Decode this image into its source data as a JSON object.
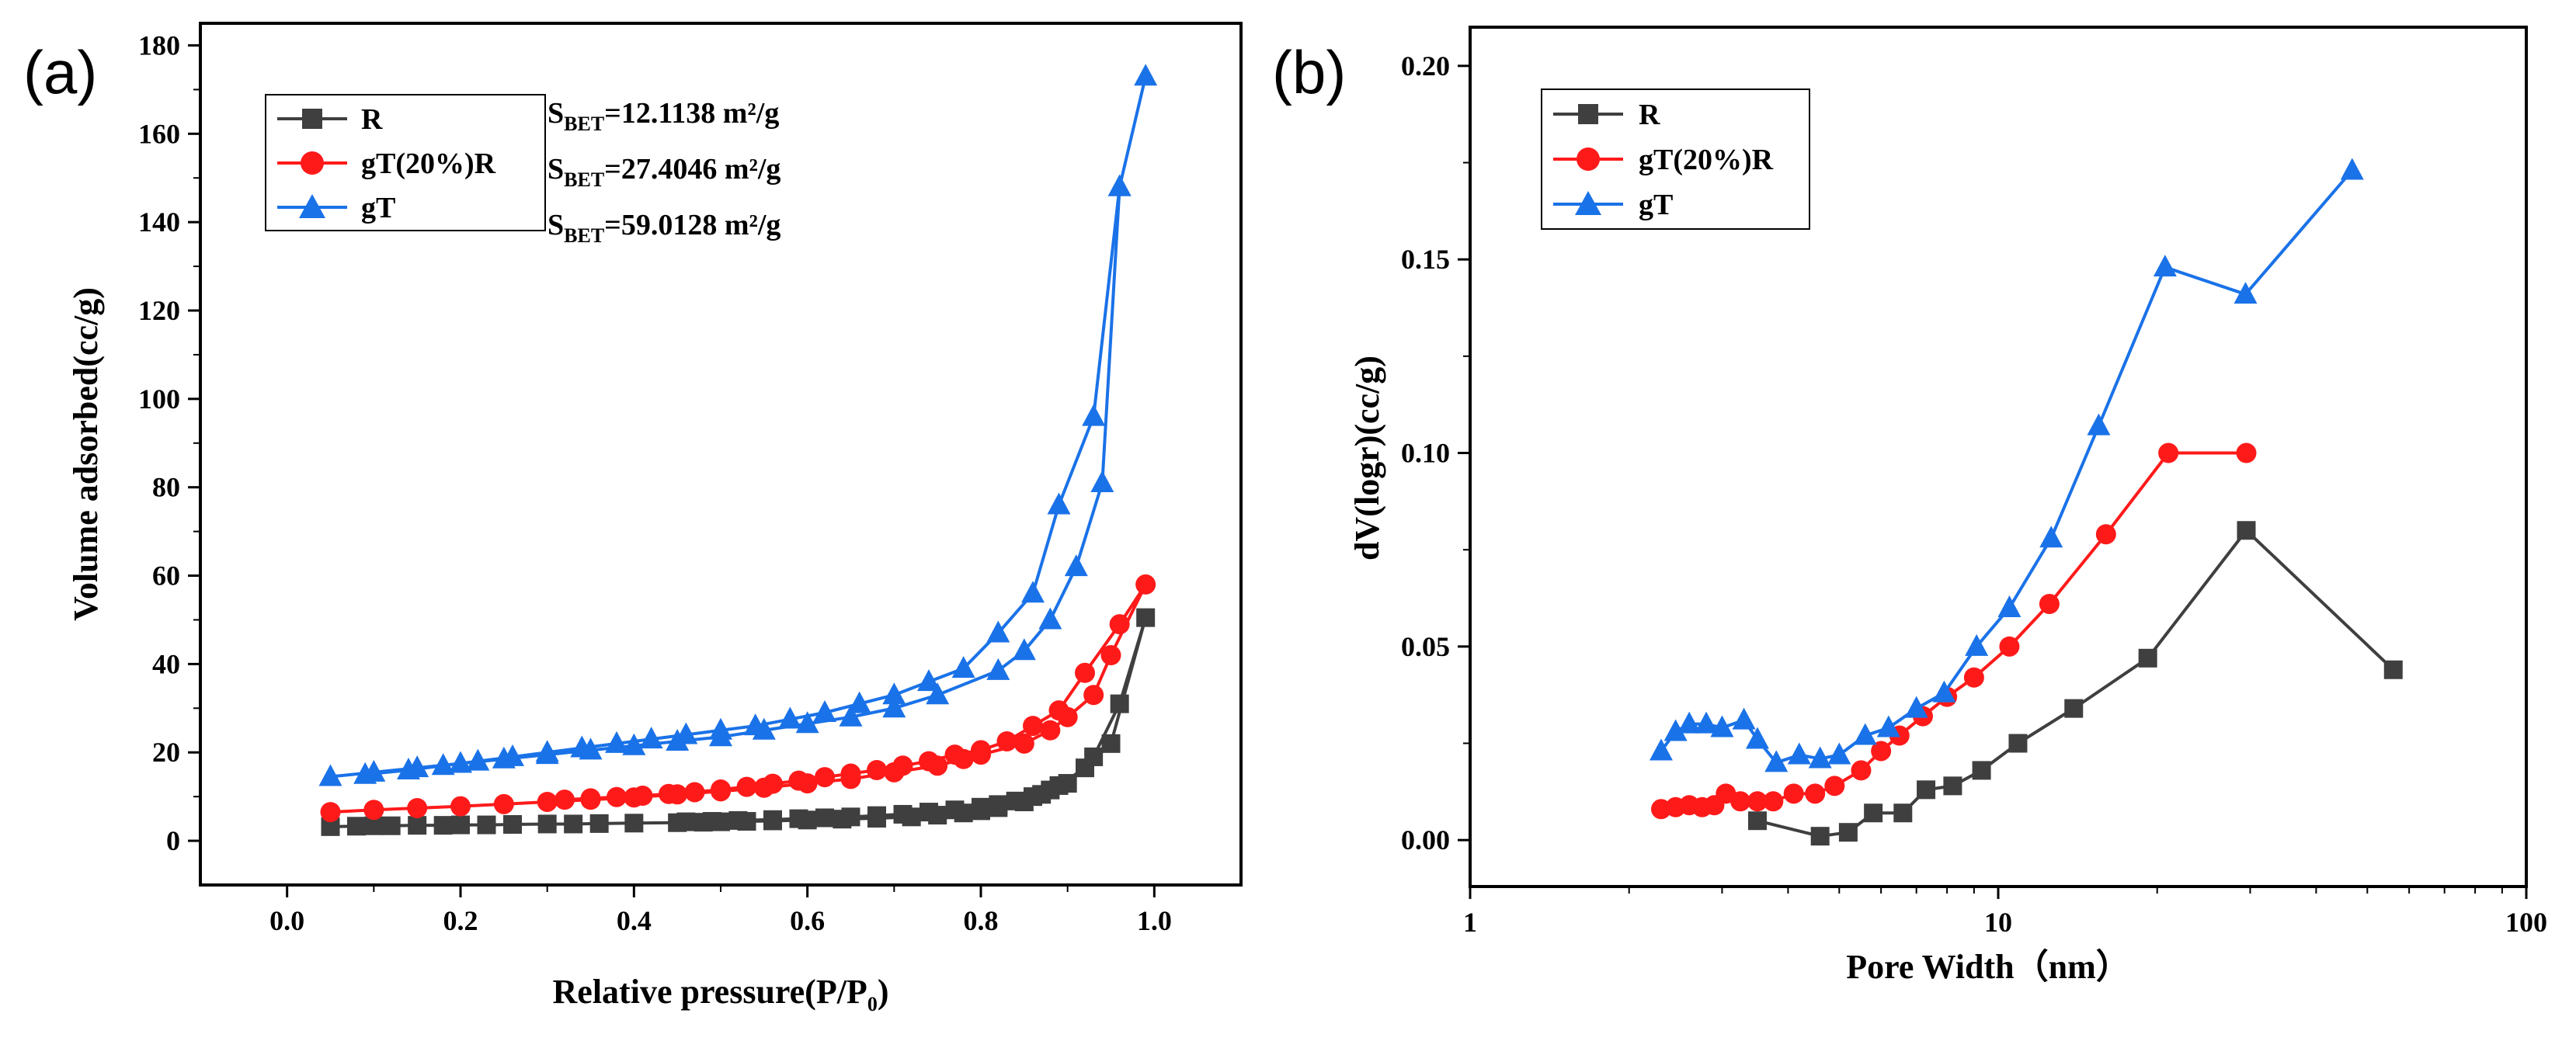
{
  "colors": {
    "R": "#3f3f3f",
    "gT20R": "#ff1a1a",
    "gT": "#1a72e8",
    "axis": "#000000"
  },
  "chart_data": [
    {
      "panel_label": "(a)",
      "type": "line",
      "xlabel_main": "Relative pressure(P/P",
      "xlabel_sub": "0",
      "xlabel_end": ")",
      "ylabel": "Volume adsorbed(cc/g)",
      "xlim": [
        -0.1,
        1.1
      ],
      "ylim": [
        -10,
        185
      ],
      "xticks": [
        0.0,
        0.2,
        0.4,
        0.6,
        0.8,
        1.0
      ],
      "xtick_labels": [
        "0.0",
        "0.2",
        "0.4",
        "0.6",
        "0.8",
        "1.0"
      ],
      "yticks": [
        0,
        20,
        40,
        60,
        80,
        100,
        120,
        140,
        160,
        180
      ],
      "ytick_labels": [
        "0",
        "20",
        "40",
        "60",
        "80",
        "100",
        "120",
        "140",
        "160",
        "180"
      ],
      "legend": [
        "R",
        "gT(20%)R",
        "gT"
      ],
      "annotations": [
        {
          "prefix": "S",
          "sub": "BET",
          "value": "=12.1138 m²/g"
        },
        {
          "prefix": "S",
          "sub": "BET",
          "value": "=27.4046 m²/g"
        },
        {
          "prefix": "S",
          "sub": "BET",
          "value": "=59.0128 m²/g"
        }
      ],
      "series": [
        {
          "name": "R",
          "marker": "square",
          "color_key": "R",
          "x": [
            0.05,
            0.08,
            0.1,
            0.12,
            0.15,
            0.18,
            0.2,
            0.23,
            0.26,
            0.3,
            0.33,
            0.36,
            0.4,
            0.45,
            0.48,
            0.5,
            0.53,
            0.56,
            0.6,
            0.64,
            0.68,
            0.72,
            0.75,
            0.78,
            0.8,
            0.82,
            0.85,
            0.87,
            0.89,
            0.92,
            0.95,
            0.99,
            0.96,
            0.93,
            0.9,
            0.88,
            0.86,
            0.84,
            0.82,
            0.8,
            0.77,
            0.74,
            0.71,
            0.68,
            0.65,
            0.62,
            0.59,
            0.56,
            0.52,
            0.49,
            0.46
          ],
          "y": [
            3.2,
            3.3,
            3.4,
            3.4,
            3.5,
            3.5,
            3.6,
            3.6,
            3.7,
            3.8,
            3.8,
            3.9,
            4.0,
            4.1,
            4.2,
            4.3,
            4.4,
            4.5,
            4.7,
            4.9,
            5.1,
            5.4,
            5.8,
            6.3,
            6.8,
            7.5,
            8.8,
            10.5,
            12.5,
            16.5,
            22,
            50.5,
            31,
            19,
            13,
            11.5,
            10,
            9,
            8.2,
            7.6,
            7.0,
            6.5,
            6.0,
            5.7,
            5.4,
            5.2,
            5.0,
            4.8,
            4.6,
            4.4,
            4.3
          ]
        },
        {
          "name": "gT(20%)R",
          "marker": "circle",
          "color_key": "gT20R",
          "x": [
            0.05,
            0.1,
            0.15,
            0.2,
            0.25,
            0.3,
            0.35,
            0.4,
            0.45,
            0.5,
            0.55,
            0.6,
            0.65,
            0.7,
            0.75,
            0.78,
            0.8,
            0.85,
            0.88,
            0.9,
            0.93,
            0.95,
            0.99,
            0.96,
            0.92,
            0.89,
            0.86,
            0.83,
            0.8,
            0.77,
            0.74,
            0.71,
            0.68,
            0.65,
            0.62,
            0.59,
            0.56,
            0.53,
            0.5,
            0.47,
            0.44,
            0.41,
            0.38,
            0.35,
            0.32
          ],
          "y": [
            6.5,
            7.0,
            7.4,
            7.8,
            8.3,
            8.8,
            9.3,
            9.8,
            10.5,
            11.2,
            12.0,
            13.0,
            14.0,
            15.5,
            17.0,
            18.5,
            19.5,
            22,
            25,
            28,
            33,
            42,
            58,
            49,
            38,
            29.5,
            26,
            22.5,
            20.5,
            19.5,
            18,
            17,
            16,
            15.2,
            14.4,
            13.6,
            12.9,
            12.2,
            11.6,
            11.0,
            10.6,
            10.2,
            9.9,
            9.6,
            9.3
          ]
        },
        {
          "name": "gT",
          "marker": "triangle",
          "color_key": "gT",
          "x": [
            0.05,
            0.1,
            0.15,
            0.2,
            0.25,
            0.3,
            0.35,
            0.4,
            0.45,
            0.5,
            0.55,
            0.6,
            0.65,
            0.7,
            0.75,
            0.82,
            0.85,
            0.88,
            0.91,
            0.94,
            0.96,
            0.99,
            0.96,
            0.93,
            0.89,
            0.86,
            0.82,
            0.78,
            0.74,
            0.7,
            0.66,
            0.62,
            0.58,
            0.54,
            0.5,
            0.46,
            0.42,
            0.38,
            0.34,
            0.3,
            0.26,
            0.22,
            0.18,
            0.14,
            0.09
          ],
          "y": [
            14.5,
            15.5,
            16.5,
            17.5,
            18.5,
            19.5,
            20.5,
            21.5,
            22.5,
            23.5,
            25.0,
            26.5,
            28.0,
            30.0,
            33.0,
            38.5,
            43,
            50,
            62,
            81,
            148,
            173,
            148,
            96,
            76,
            56,
            47,
            39,
            36,
            33,
            31,
            29,
            27.5,
            26,
            25,
            24,
            23,
            22,
            21,
            20,
            19,
            18,
            17,
            16,
            15
          ]
        }
      ]
    },
    {
      "panel_label": "(b)",
      "type": "line",
      "xlabel": "Pore Width（nm）",
      "ylabel": "dV(logr)(cc/g)",
      "xscale": "log",
      "xlim": [
        1,
        100
      ],
      "ylim": [
        -0.012,
        0.21
      ],
      "xticks": [
        1,
        10,
        100
      ],
      "xtick_labels": [
        "1",
        "10",
        "100"
      ],
      "yticks": [
        0.0,
        0.05,
        0.1,
        0.15,
        0.2
      ],
      "ytick_labels": [
        "0.00",
        "0.05",
        "0.10",
        "0.15",
        "0.20"
      ],
      "legend": [
        "R",
        "gT(20%)R",
        "gT"
      ],
      "series": [
        {
          "name": "R",
          "marker": "square",
          "color_key": "R",
          "x": [
            3.5,
            4.6,
            5.2,
            5.8,
            6.6,
            7.3,
            8.2,
            9.3,
            10.9,
            13.9,
            19.2,
            29.5,
            56
          ],
          "y": [
            0.005,
            0.001,
            0.002,
            0.007,
            0.007,
            0.013,
            0.014,
            0.018,
            0.025,
            0.034,
            0.047,
            0.08,
            0.044
          ]
        },
        {
          "name": "gT(20%)R",
          "marker": "circle",
          "color_key": "gT20R",
          "x": [
            2.3,
            2.45,
            2.6,
            2.75,
            2.9,
            3.05,
            3.25,
            3.5,
            3.75,
            4.1,
            4.5,
            4.9,
            5.5,
            6.0,
            6.5,
            7.2,
            8.0,
            9.0,
            10.5,
            12.5,
            16.0,
            21.0,
            29.5
          ],
          "y": [
            0.008,
            0.0085,
            0.009,
            0.0085,
            0.009,
            0.012,
            0.01,
            0.01,
            0.01,
            0.012,
            0.012,
            0.014,
            0.018,
            0.023,
            0.027,
            0.032,
            0.037,
            0.042,
            0.05,
            0.061,
            0.079,
            0.1,
            0.1
          ]
        },
        {
          "name": "gT",
          "marker": "triangle",
          "color_key": "gT",
          "x": [
            2.3,
            2.45,
            2.6,
            2.8,
            3.0,
            3.3,
            3.5,
            3.8,
            4.2,
            4.6,
            5.0,
            5.6,
            6.2,
            7.0,
            7.9,
            9.1,
            10.5,
            12.6,
            15.5,
            20.7,
            29.4,
            46.8
          ],
          "y": [
            0.023,
            0.028,
            0.03,
            0.03,
            0.029,
            0.031,
            0.026,
            0.02,
            0.022,
            0.021,
            0.022,
            0.027,
            0.029,
            0.034,
            0.038,
            0.05,
            0.06,
            0.078,
            0.107,
            0.148,
            0.141,
            0.173
          ]
        }
      ]
    }
  ]
}
